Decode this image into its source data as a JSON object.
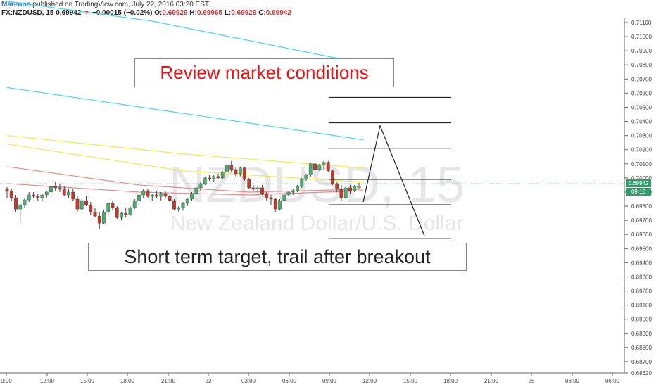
{
  "header": {
    "author": "Marenno",
    "published": "published on TradingView.com, July 22, 2016 03:20 EST",
    "symbol": "FX:NZDUSD, 15",
    "last": "0.69942",
    "change": "−0.00015 (−0.02%)",
    "o_label": "O:",
    "o_value": "0.69929",
    "h_label": "H:",
    "h_value": "0.69965",
    "l_label": "L:",
    "l_value": "0.69929",
    "c_label": "C:",
    "c_value": "0.69942"
  },
  "watermark": {
    "symbol": "NZDUSD, 15",
    "description": "New Zealand Dollar/U.S. Dollar"
  },
  "annotations": {
    "review": "Review market conditions",
    "target": "Short term target, trail after breakout"
  },
  "price_tags": {
    "last": "0.69942",
    "countdown": "09:10"
  },
  "colors": {
    "up": "#4caf70",
    "down": "#c0392b",
    "cyan": "#40d8e8",
    "yellow": "#f5e84a",
    "red_ma": "#e88a8a",
    "tag": "#2e9d6b"
  },
  "chart_data": {
    "type": "candlestick",
    "ylim": [
      0.6862,
      0.7111
    ],
    "y_ticks": [
      "0.71100",
      "0.71000",
      "0.70900",
      "0.70800",
      "0.70700",
      "0.70600",
      "0.70500",
      "0.70400",
      "0.70300",
      "0.70200",
      "0.70100",
      "0.70000",
      "0.69900",
      "0.69800",
      "0.69700",
      "0.69600",
      "0.69500",
      "0.69400",
      "0.69300",
      "0.69200",
      "0.69100",
      "0.69000",
      "0.68900",
      "0.68800",
      "0.68700",
      "0.68620"
    ],
    "x_ticks": [
      "9:00",
      "12:00",
      "15:00",
      "18:00",
      "21:00",
      "22",
      "03:00",
      "06:00",
      "09:00",
      "12:00",
      "15:00",
      "18:00",
      "21:00",
      "25",
      "03:00",
      "06:00"
    ],
    "candles": [
      [
        0.6992,
        0.69935,
        0.6986,
        0.69905
      ],
      [
        0.69905,
        0.69925,
        0.6984,
        0.6986
      ],
      [
        0.6986,
        0.6988,
        0.6976,
        0.6978
      ],
      [
        0.6978,
        0.6982,
        0.6968,
        0.6981
      ],
      [
        0.6981,
        0.6986,
        0.6979,
        0.69845
      ],
      [
        0.69845,
        0.699,
        0.6983,
        0.6988
      ],
      [
        0.6988,
        0.699,
        0.6986,
        0.6987
      ],
      [
        0.6987,
        0.6989,
        0.6984,
        0.6986
      ],
      [
        0.6986,
        0.6989,
        0.6984,
        0.6988
      ],
      [
        0.6988,
        0.6991,
        0.6986,
        0.699
      ],
      [
        0.699,
        0.6995,
        0.6988,
        0.6994
      ],
      [
        0.6994,
        0.6997,
        0.6991,
        0.6993
      ],
      [
        0.6993,
        0.6996,
        0.699,
        0.6992
      ],
      [
        0.6992,
        0.6994,
        0.6987,
        0.6988
      ],
      [
        0.6988,
        0.6992,
        0.6986,
        0.699
      ],
      [
        0.699,
        0.6992,
        0.6984,
        0.6985
      ],
      [
        0.6985,
        0.6987,
        0.6976,
        0.6978
      ],
      [
        0.6978,
        0.6985,
        0.6977,
        0.6984
      ],
      [
        0.6984,
        0.6987,
        0.698,
        0.6981
      ],
      [
        0.6981,
        0.6983,
        0.6974,
        0.6976
      ],
      [
        0.6976,
        0.6979,
        0.6972,
        0.6973
      ],
      [
        0.6973,
        0.6976,
        0.6964,
        0.6968
      ],
      [
        0.6968,
        0.6977,
        0.6967,
        0.6976
      ],
      [
        0.6976,
        0.6983,
        0.6974,
        0.6982
      ],
      [
        0.6982,
        0.6984,
        0.6977,
        0.6979
      ],
      [
        0.6979,
        0.698,
        0.6971,
        0.6972
      ],
      [
        0.6972,
        0.6976,
        0.697,
        0.6975
      ],
      [
        0.6975,
        0.6979,
        0.6972,
        0.6974
      ],
      [
        0.6974,
        0.698,
        0.6973,
        0.6979
      ],
      [
        0.6979,
        0.6985,
        0.6978,
        0.6984
      ],
      [
        0.6984,
        0.6989,
        0.6982,
        0.6988
      ],
      [
        0.6988,
        0.6992,
        0.6986,
        0.6991
      ],
      [
        0.6991,
        0.6992,
        0.6986,
        0.6987
      ],
      [
        0.6987,
        0.6989,
        0.6984,
        0.6988
      ],
      [
        0.6988,
        0.6991,
        0.6986,
        0.6987
      ],
      [
        0.6987,
        0.699,
        0.6984,
        0.6989
      ],
      [
        0.6989,
        0.6991,
        0.6986,
        0.6987
      ],
      [
        0.6987,
        0.6988,
        0.6983,
        0.6984
      ],
      [
        0.6984,
        0.6985,
        0.6977,
        0.6978
      ],
      [
        0.6978,
        0.698,
        0.6976,
        0.6979
      ],
      [
        0.6979,
        0.6983,
        0.6977,
        0.6982
      ],
      [
        0.6982,
        0.6986,
        0.698,
        0.6985
      ],
      [
        0.6985,
        0.699,
        0.6984,
        0.6989
      ],
      [
        0.6989,
        0.6994,
        0.6988,
        0.6993
      ],
      [
        0.6993,
        0.6997,
        0.6991,
        0.6996
      ],
      [
        0.6996,
        0.7001,
        0.6995,
        0.7
      ],
      [
        0.7,
        0.7002,
        0.6998,
        0.6999
      ],
      [
        0.6999,
        0.7002,
        0.6997,
        0.7001
      ],
      [
        0.7001,
        0.7003,
        0.6999,
        0.7
      ],
      [
        0.7,
        0.7005,
        0.6999,
        0.7004
      ],
      [
        0.7004,
        0.701,
        0.7003,
        0.7009
      ],
      [
        0.7009,
        0.7012,
        0.7004,
        0.7006
      ],
      [
        0.7006,
        0.7008,
        0.7001,
        0.7003
      ],
      [
        0.7003,
        0.7008,
        0.7001,
        0.7007
      ],
      [
        0.7007,
        0.7008,
        0.6998,
        0.6999
      ],
      [
        0.6999,
        0.7,
        0.6992,
        0.6993
      ],
      [
        0.6993,
        0.6995,
        0.6991,
        0.6992
      ],
      [
        0.6992,
        0.6994,
        0.6989,
        0.6993
      ],
      [
        0.6993,
        0.6995,
        0.6988,
        0.6989
      ],
      [
        0.6989,
        0.699,
        0.6984,
        0.6986
      ],
      [
        0.6986,
        0.6988,
        0.6981,
        0.6985
      ],
      [
        0.6985,
        0.6986,
        0.6976,
        0.6978
      ],
      [
        0.6978,
        0.6985,
        0.6977,
        0.6984
      ],
      [
        0.6984,
        0.6989,
        0.6983,
        0.6988
      ],
      [
        0.6988,
        0.6991,
        0.6987,
        0.699
      ],
      [
        0.699,
        0.6992,
        0.6988,
        0.6991
      ],
      [
        0.6991,
        0.6995,
        0.699,
        0.6994
      ],
      [
        0.6994,
        0.7,
        0.6993,
        0.6999
      ],
      [
        0.6999,
        0.7003,
        0.6998,
        0.7002
      ],
      [
        0.7002,
        0.7011,
        0.7001,
        0.701
      ],
      [
        0.701,
        0.7014,
        0.7004,
        0.7006
      ],
      [
        0.7006,
        0.701,
        0.7005,
        0.7009
      ],
      [
        0.7009,
        0.7012,
        0.7006,
        0.7011
      ],
      [
        0.7011,
        0.7012,
        0.7004,
        0.7005
      ],
      [
        0.7005,
        0.7006,
        0.6995,
        0.6996
      ],
      [
        0.6996,
        0.6997,
        0.699,
        0.6992
      ],
      [
        0.6992,
        0.6995,
        0.6984,
        0.6986
      ],
      [
        0.6986,
        0.6994,
        0.6985,
        0.6993
      ],
      [
        0.6993,
        0.6995,
        0.6989,
        0.6991
      ],
      [
        0.6991,
        0.6995,
        0.699,
        0.6994
      ],
      [
        0.69929,
        0.69965,
        0.69929,
        0.69942
      ]
    ],
    "moving_averages": [
      {
        "color": "#40d8e8",
        "points": [
          [
            0,
            0.7125
          ],
          [
            33,
            0.7111
          ]
        ]
      },
      {
        "color": "#40d8e8",
        "points": [
          [
            33,
            0.7111
          ],
          [
            81,
            0.7081
          ]
        ]
      },
      {
        "color": "#40d8e8",
        "points": [
          [
            0,
            0.7064
          ],
          [
            81,
            0.7027
          ]
        ]
      },
      {
        "color": "#f5e84a",
        "points": [
          [
            0,
            0.703
          ],
          [
            40,
            0.7017
          ],
          [
            81,
            0.7007
          ]
        ]
      },
      {
        "color": "#f5e84a",
        "points": [
          [
            0,
            0.7024
          ],
          [
            40,
            0.7005
          ],
          [
            81,
            0.6997
          ]
        ]
      },
      {
        "color": "#e88a8a",
        "points": [
          [
            0,
            0.7008
          ],
          [
            30,
            0.6995
          ],
          [
            55,
            0.699
          ],
          [
            81,
            0.6992
          ]
        ]
      },
      {
        "color": "#e88a8a",
        "points": [
          [
            0,
            0.6996
          ],
          [
            30,
            0.699
          ],
          [
            55,
            0.6988
          ],
          [
            81,
            0.6991
          ]
        ]
      }
    ],
    "levels": [
      0.7057,
      0.7039,
      0.7021,
      0.6999,
      0.6981,
      0.6957
    ],
    "projection": [
      [
        0.6983
      ],
      [
        0.7037
      ],
      [
        0.6959
      ]
    ]
  }
}
